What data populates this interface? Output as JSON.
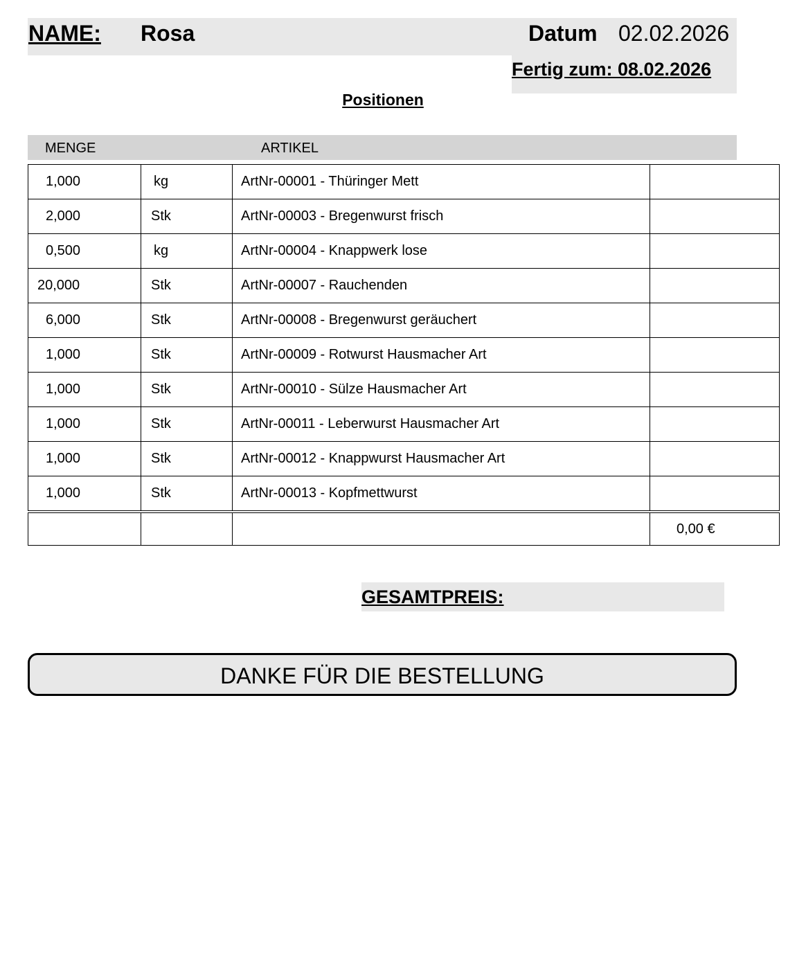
{
  "header": {
    "name_label": "NAME:",
    "name": "Rosa",
    "datum_label": "Datum",
    "datum": "02.02.2026",
    "fertig": "Fertig zum: 08.02.2026"
  },
  "section_title": "Positionen",
  "columns": {
    "menge": "MENGE",
    "artikel": "ARTIKEL"
  },
  "rows": [
    {
      "menge": "1,000",
      "unit": "kg",
      "artikel": "ArtNr-00001 -  Thüringer Mett",
      "preis": ""
    },
    {
      "menge": "2,000",
      "unit": "Stk",
      "artikel": "ArtNr-00003 -  Bregenwurst frisch",
      "preis": ""
    },
    {
      "menge": "0,500",
      "unit": "kg",
      "artikel": "ArtNr-00004 -  Knappwerk lose",
      "preis": ""
    },
    {
      "menge": "20,000",
      "unit": "Stk",
      "artikel": "ArtNr-00007 -  Rauchenden",
      "preis": ""
    },
    {
      "menge": "6,000",
      "unit": "Stk",
      "artikel": "ArtNr-00008 -  Bregenwurst geräuchert",
      "preis": ""
    },
    {
      "menge": "1,000",
      "unit": "Stk",
      "artikel": "ArtNr-00009 -  Rotwurst Hausmacher Art",
      "preis": ""
    },
    {
      "menge": "1,000",
      "unit": "Stk",
      "artikel": "ArtNr-00010 -  Sülze Hausmacher Art",
      "preis": ""
    },
    {
      "menge": "1,000",
      "unit": "Stk",
      "artikel": "ArtNr-00011 -  Leberwurst Hausmacher Art",
      "preis": ""
    },
    {
      "menge": "1,000",
      "unit": "Stk",
      "artikel": "ArtNr-00012 -  Knappwurst Hausmacher Art",
      "preis": ""
    },
    {
      "menge": "1,000",
      "unit": "Stk",
      "artikel": "ArtNr-00013 -  Kopfmettwurst",
      "preis": ""
    }
  ],
  "total": "0,00 €",
  "gesamtpreis_label": "GESAMTPREIS:",
  "footer": "DANKE FÜR DIE BESTELLUNG"
}
